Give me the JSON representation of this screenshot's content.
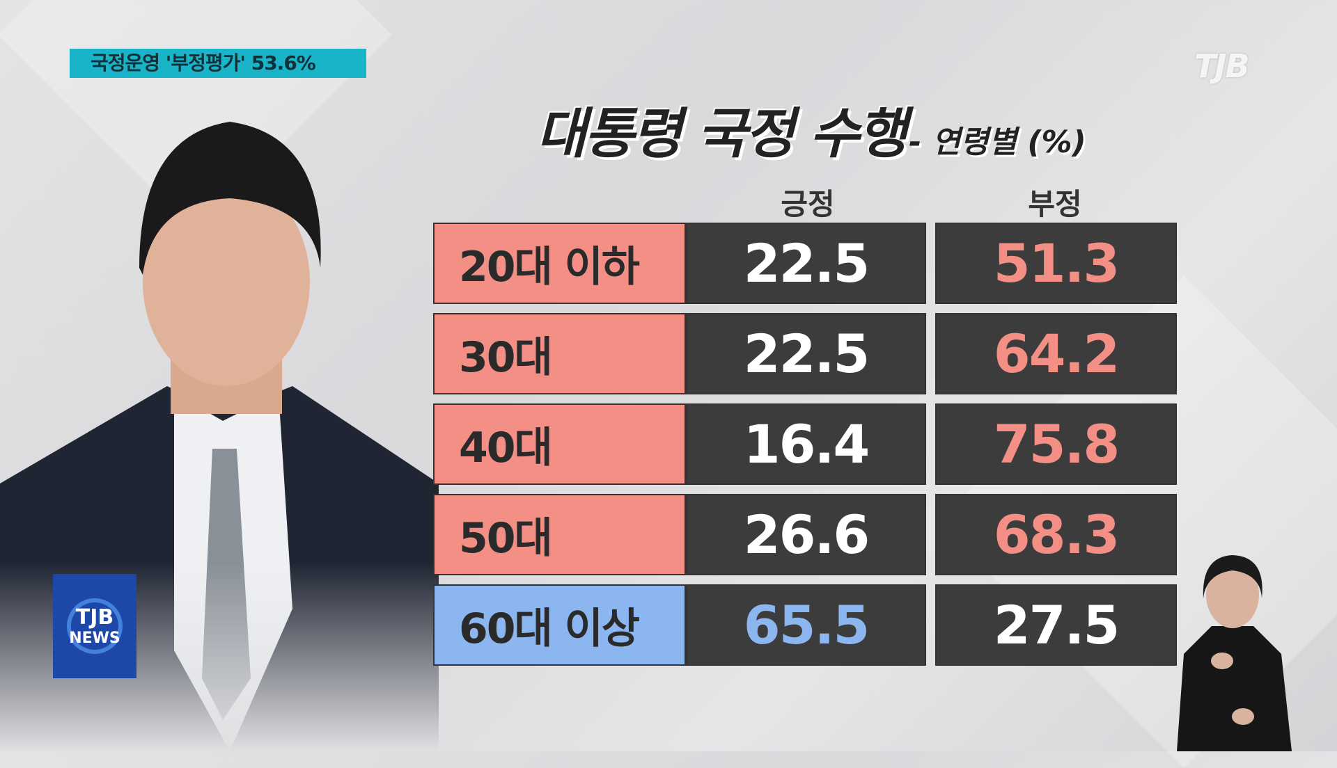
{
  "caption": "국정운영 '부정평가' 53.6%",
  "broadcaster_logo": "TJB",
  "news_logo": {
    "line1": "TJB",
    "line2": "NEWS"
  },
  "title": {
    "main": "대통령 국정 수행",
    "sub": "- 연령별 (%)"
  },
  "colors": {
    "negative_accent": "#f48f86",
    "positive_accent": "#8cb6f0",
    "cell_bg": "#3c3c3c"
  },
  "chart_data": {
    "type": "table",
    "title": "대통령 국정 수행 - 연령별 (%)",
    "columns": [
      "긍정",
      "부정"
    ],
    "rows": [
      {
        "label": "20대 이하",
        "values": [
          "22.5",
          "51.3"
        ],
        "highlight": "negative"
      },
      {
        "label": "30대",
        "values": [
          "22.5",
          "64.2"
        ],
        "highlight": "negative"
      },
      {
        "label": "40대",
        "values": [
          "16.4",
          "75.8"
        ],
        "highlight": "negative"
      },
      {
        "label": "50대",
        "values": [
          "26.6",
          "68.3"
        ],
        "highlight": "negative"
      },
      {
        "label": "60대 이상",
        "values": [
          "65.5",
          "27.5"
        ],
        "highlight": "positive"
      }
    ]
  }
}
